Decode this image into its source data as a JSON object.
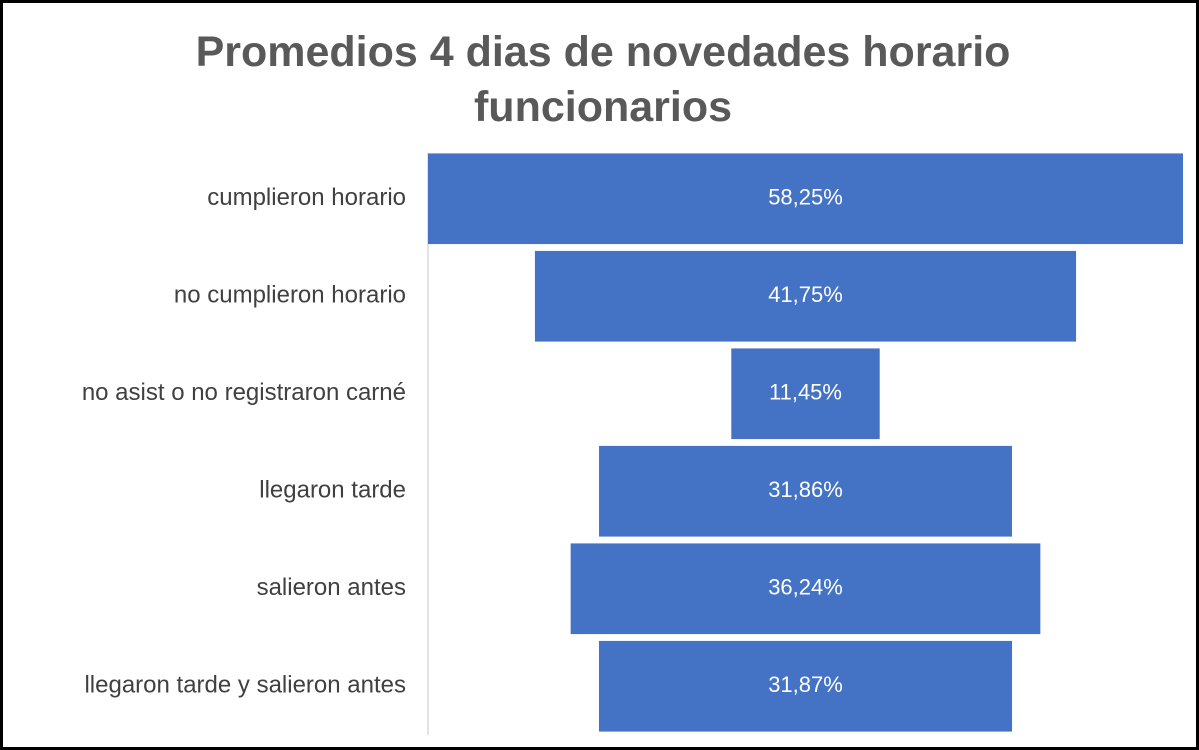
{
  "chart_data": {
    "type": "funnel",
    "title": "Promedios 4 dias de novedades horario funcionarios",
    "categories": [
      "cumplieron horario",
      "no cumplieron horario",
      "no asist o no registraron carné",
      "llegaron tarde",
      "salieron antes",
      "llegaron tarde y salieron antes"
    ],
    "values": [
      58.25,
      41.75,
      11.45,
      31.86,
      36.24,
      31.87
    ],
    "value_labels": [
      "58,25%",
      "41,75%",
      "11,45%",
      "31,86%",
      "36,24%",
      "31,87%"
    ],
    "color": "#4472c4"
  }
}
